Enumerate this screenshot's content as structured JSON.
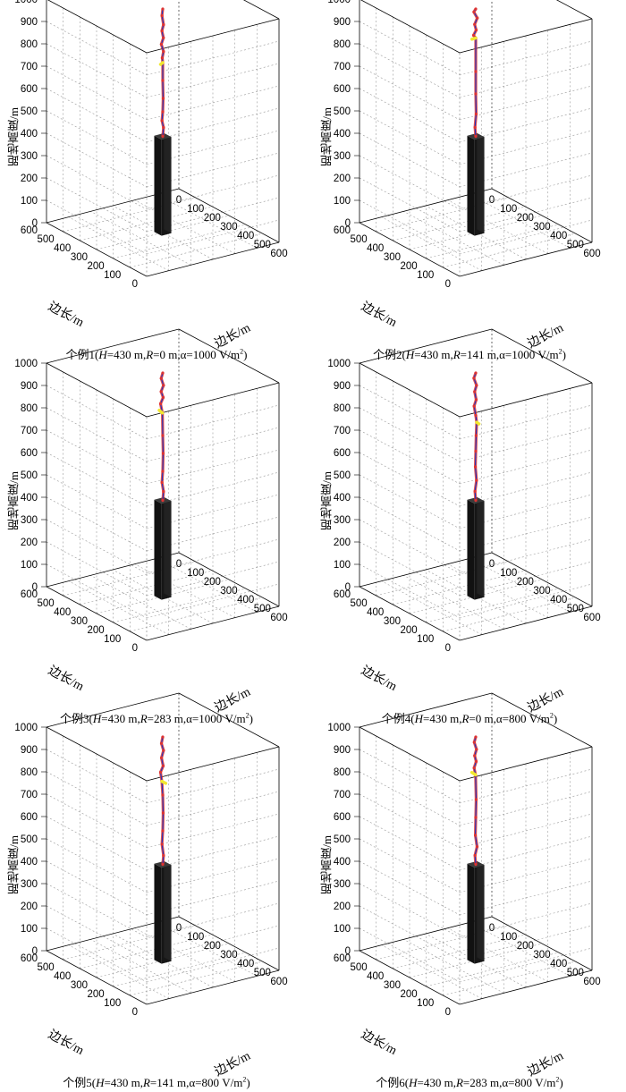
{
  "figure": {
    "axis_labels": {
      "z": "距地高度/m",
      "x": "边长/m",
      "y": "边长/m"
    },
    "colors": {
      "path_core": "#2233bb",
      "path_glow": "#dd3333",
      "connect": "#f2e830",
      "tower": "#161616",
      "grid": "#9a9a9a"
    }
  },
  "chart_data": [
    {
      "type": "scatter3d",
      "caption": {
        "prefix": "个例1(",
        "H_sym": "H",
        "H_val": "=430  m,",
        "R_sym": "R",
        "R_val": "=0  m,α=1000  V/m",
        "sup": "2",
        "suffix": ")"
      },
      "zlim": [
        0,
        1000
      ],
      "xlim": [
        0,
        600
      ],
      "ylim": [
        0,
        600
      ],
      "ticks": {
        "z": [
          "0",
          "100",
          "200",
          "300",
          "400",
          "500",
          "600",
          "700",
          "800",
          "900",
          "1000"
        ],
        "x": [
          "0",
          "100",
          "200",
          "300",
          "400",
          "500",
          "600"
        ],
        "y": [
          "0",
          "100",
          "200",
          "300",
          "400",
          "500",
          "600"
        ]
      },
      "structure_height": 430,
      "downward_leader": [
        [
          300,
          300,
          1000
        ],
        [
          302,
          298,
          970
        ],
        [
          298,
          302,
          930
        ],
        [
          305,
          300,
          900
        ],
        [
          300,
          303,
          870
        ],
        [
          306,
          298,
          840
        ],
        [
          298,
          302,
          810
        ],
        [
          303,
          300,
          780
        ],
        [
          300,
          300,
          760
        ]
      ],
      "upward_leader": [
        [
          300,
          300,
          430
        ],
        [
          298,
          302,
          470
        ],
        [
          302,
          298,
          500
        ],
        [
          300,
          300,
          540
        ],
        [
          299,
          301,
          600
        ],
        [
          300,
          300,
          680
        ],
        [
          300,
          300,
          760
        ]
      ],
      "connection": [
        [
          300,
          300,
          760
        ],
        [
          308,
          296,
          750
        ]
      ]
    },
    {
      "type": "scatter3d",
      "caption": {
        "prefix": "个例2(",
        "H_sym": "H",
        "H_val": "=430  m,",
        "R_sym": "R",
        "R_val": "=141  m,α=1000  V/m",
        "sup": "2",
        "suffix": ")"
      },
      "zlim": [
        0,
        1000
      ],
      "xlim": [
        0,
        600
      ],
      "ylim": [
        0,
        600
      ],
      "ticks": {
        "z": [
          "0",
          "100",
          "200",
          "300",
          "400",
          "500",
          "600",
          "700",
          "800",
          "900",
          "1000"
        ],
        "x": [
          "0",
          "100",
          "200",
          "300",
          "400",
          "500",
          "600"
        ],
        "y": [
          "0",
          "100",
          "200",
          "300",
          "400",
          "500",
          "600"
        ]
      },
      "structure_height": 430,
      "downward_leader": [
        [
          300,
          300,
          1000
        ],
        [
          306,
          296,
          985
        ],
        [
          296,
          304,
          960
        ],
        [
          304,
          298,
          930
        ],
        [
          300,
          302,
          905
        ],
        [
          308,
          296,
          880
        ],
        [
          300,
          300,
          870
        ]
      ],
      "upward_leader": [
        [
          300,
          300,
          430
        ],
        [
          302,
          298,
          470
        ],
        [
          299,
          301,
          530
        ],
        [
          300,
          300,
          620
        ],
        [
          300,
          300,
          720
        ],
        [
          300,
          300,
          870
        ]
      ],
      "connection": [
        [
          300,
          300,
          870
        ],
        [
          312,
          292,
          862
        ]
      ]
    },
    {
      "type": "scatter3d",
      "caption": {
        "prefix": "个例3(",
        "H_sym": "H",
        "H_val": "=430  m,",
        "R_sym": "R",
        "R_val": "=283  m,α=1000  V/m",
        "sup": "2",
        "suffix": ")"
      },
      "zlim": [
        0,
        1000
      ],
      "xlim": [
        0,
        600
      ],
      "ylim": [
        0,
        600
      ],
      "ticks": {
        "z": [
          "0",
          "100",
          "200",
          "300",
          "400",
          "500",
          "600",
          "700",
          "800",
          "900",
          "1000"
        ],
        "x": [
          "0",
          "100",
          "200",
          "300",
          "400",
          "500",
          "600"
        ],
        "y": [
          "0",
          "100",
          "200",
          "300",
          "400",
          "500",
          "600"
        ]
      },
      "structure_height": 430,
      "downward_leader": [
        [
          300,
          300,
          1000
        ],
        [
          304,
          296,
          975
        ],
        [
          298,
          302,
          945
        ],
        [
          306,
          297,
          915
        ],
        [
          300,
          302,
          890
        ],
        [
          308,
          296,
          860
        ],
        [
          302,
          300,
          820
        ]
      ],
      "upward_leader": [
        [
          300,
          300,
          430
        ],
        [
          298,
          302,
          470
        ],
        [
          302,
          298,
          510
        ],
        [
          300,
          300,
          560
        ],
        [
          299,
          301,
          640
        ],
        [
          300,
          300,
          720
        ],
        [
          302,
          300,
          820
        ]
      ],
      "connection": [
        [
          302,
          300,
          820
        ],
        [
          312,
          293,
          830
        ]
      ]
    },
    {
      "type": "scatter3d",
      "caption": {
        "prefix": "个例4(",
        "H_sym": "H",
        "H_val": "=430  m,",
        "R_sym": "R",
        "R_val": "=0  m,α=800  V/m",
        "sup": "2",
        "suffix": ")"
      },
      "zlim": [
        0,
        1000
      ],
      "xlim": [
        0,
        600
      ],
      "ylim": [
        0,
        600
      ],
      "ticks": {
        "z": [
          "0",
          "100",
          "200",
          "300",
          "400",
          "500",
          "600",
          "700",
          "800",
          "900",
          "1000"
        ],
        "x": [
          "0",
          "100",
          "200",
          "300",
          "400",
          "500",
          "600"
        ],
        "y": [
          "0",
          "100",
          "200",
          "300",
          "400",
          "500",
          "600"
        ]
      },
      "structure_height": 430,
      "downward_leader": [
        [
          300,
          300,
          1000
        ],
        [
          306,
          296,
          975
        ],
        [
          298,
          302,
          945
        ],
        [
          304,
          298,
          915
        ],
        [
          300,
          302,
          880
        ],
        [
          306,
          297,
          850
        ],
        [
          300,
          300,
          810
        ],
        [
          297,
          302,
          780
        ]
      ],
      "upward_leader": [
        [
          300,
          300,
          430
        ],
        [
          302,
          298,
          470
        ],
        [
          298,
          302,
          520
        ],
        [
          301,
          299,
          580
        ],
        [
          300,
          300,
          650
        ],
        [
          299,
          301,
          720
        ],
        [
          297,
          302,
          780
        ]
      ],
      "connection": [
        [
          297,
          302,
          780
        ],
        [
          289,
          306,
          775
        ]
      ]
    },
    {
      "type": "scatter3d",
      "caption": {
        "prefix": "个例5(",
        "H_sym": "H",
        "H_val": "=430  m,",
        "R_sym": "R",
        "R_val": "=141  m,α=800  V/m",
        "sup": "2",
        "suffix": ")"
      },
      "zlim": [
        0,
        1000
      ],
      "xlim": [
        0,
        600
      ],
      "ylim": [
        0,
        600
      ],
      "ticks": {
        "z": [
          "0",
          "100",
          "200",
          "300",
          "400",
          "500",
          "600",
          "700",
          "800",
          "900",
          "1000"
        ],
        "x": [
          "0",
          "100",
          "200",
          "300",
          "400",
          "500",
          "600"
        ],
        "y": [
          "0",
          "100",
          "200",
          "300",
          "400",
          "500",
          "600"
        ]
      },
      "structure_height": 430,
      "downward_leader": [
        [
          300,
          300,
          1000
        ],
        [
          304,
          297,
          970
        ],
        [
          298,
          302,
          940
        ],
        [
          305,
          298,
          905
        ],
        [
          300,
          302,
          870
        ],
        [
          308,
          296,
          840
        ],
        [
          304,
          299,
          800
        ]
      ],
      "upward_leader": [
        [
          300,
          300,
          430
        ],
        [
          298,
          302,
          470
        ],
        [
          302,
          298,
          520
        ],
        [
          300,
          300,
          580
        ],
        [
          299,
          301,
          660
        ],
        [
          300,
          300,
          740
        ],
        [
          304,
          299,
          800
        ]
      ],
      "connection": [
        [
          304,
          299,
          800
        ],
        [
          290,
          306,
          795
        ]
      ]
    },
    {
      "type": "scatter3d",
      "caption": {
        "prefix": "个例6(",
        "H_sym": "H",
        "H_val": "=430  m,",
        "R_sym": "R",
        "R_val": "=283  m,α=800  V/m",
        "sup": "2",
        "suffix": ")"
      },
      "zlim": [
        0,
        1000
      ],
      "xlim": [
        0,
        600
      ],
      "ylim": [
        0,
        600
      ],
      "ticks": {
        "z": [
          "0",
          "100",
          "200",
          "300",
          "400",
          "500",
          "600",
          "700",
          "800",
          "900",
          "1000"
        ],
        "x": [
          "0",
          "100",
          "200",
          "300",
          "400",
          "500",
          "600"
        ],
        "y": [
          "0",
          "100",
          "200",
          "300",
          "400",
          "500",
          "600"
        ]
      },
      "structure_height": 430,
      "downward_leader": [
        [
          300,
          300,
          1000
        ],
        [
          305,
          297,
          975
        ],
        [
          298,
          302,
          945
        ],
        [
          304,
          298,
          915
        ],
        [
          300,
          302,
          890
        ],
        [
          306,
          297,
          860
        ],
        [
          301,
          300,
          830
        ]
      ],
      "upward_leader": [
        [
          300,
          300,
          430
        ],
        [
          302,
          298,
          470
        ],
        [
          296,
          303,
          510
        ],
        [
          301,
          299,
          560
        ],
        [
          300,
          300,
          640
        ],
        [
          299,
          301,
          720
        ],
        [
          301,
          300,
          830
        ]
      ],
      "connection": [
        [
          301,
          300,
          830
        ],
        [
          313,
          292,
          838
        ]
      ]
    }
  ]
}
